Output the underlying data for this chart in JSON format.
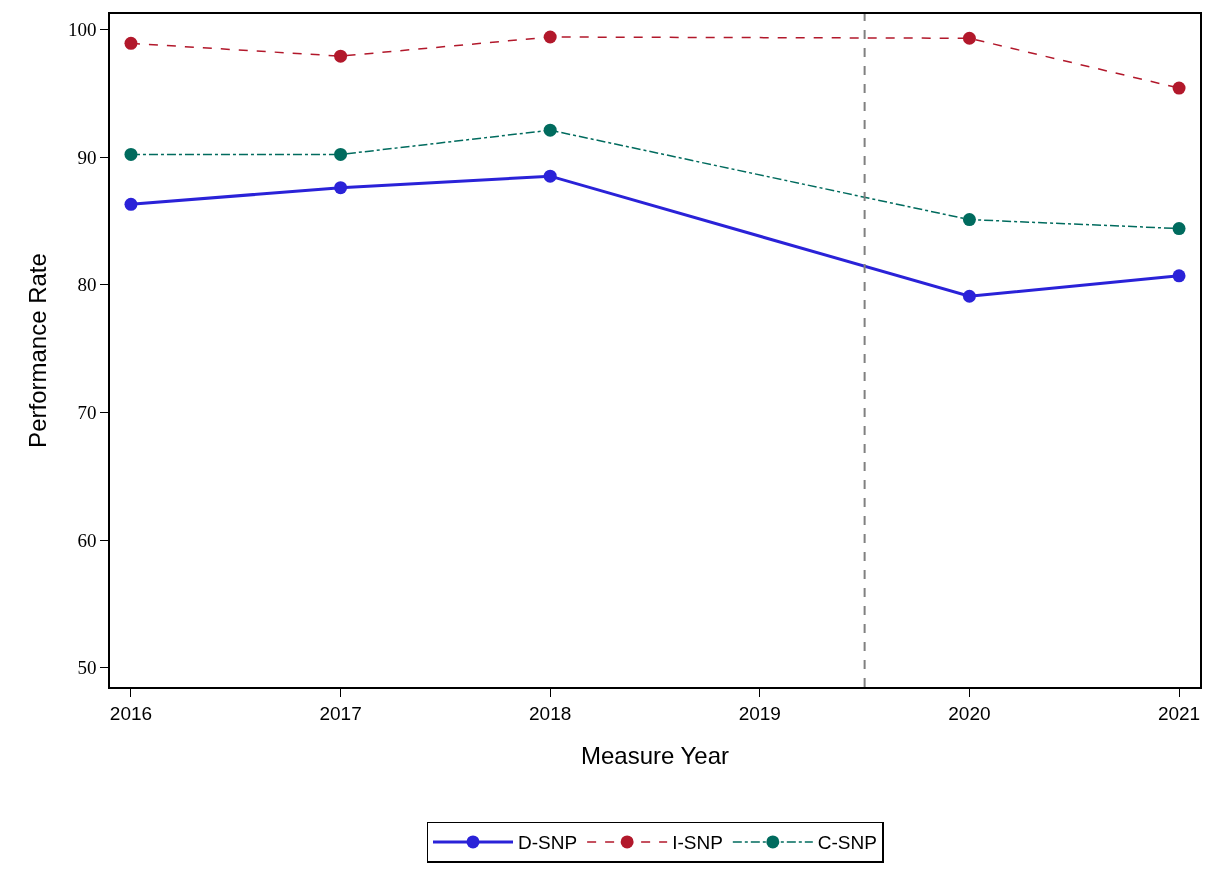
{
  "chart_data": {
    "type": "line",
    "xlabel": "Measure Year",
    "ylabel": "Performance Rate",
    "x": [
      2016,
      2017,
      2018,
      2020,
      2021
    ],
    "series": [
      {
        "name": "D-SNP",
        "color": "#2a22d8",
        "line_style": "solid",
        "values": [
          86.3,
          87.6,
          88.5,
          79.1,
          80.7
        ]
      },
      {
        "name": "I-SNP",
        "color": "#b2182b",
        "line_style": "dashed",
        "values": [
          98.9,
          97.9,
          99.4,
          99.3,
          95.4
        ]
      },
      {
        "name": "C-SNP",
        "color": "#006b5e",
        "line_style": "dashdot",
        "values": [
          90.2,
          90.2,
          92.1,
          85.1,
          84.4
        ]
      }
    ],
    "xlim": [
      2015.9,
      2021.1
    ],
    "xticks": [
      2016,
      2017,
      2018,
      2019,
      2020,
      2021
    ],
    "ylim": [
      48.5,
      101.2
    ],
    "yticks": [
      50,
      60,
      70,
      80,
      90,
      100
    ],
    "ref_lines": [
      {
        "axis": "x",
        "value": 2019.5,
        "color": "#808080",
        "line_style": "dashed"
      }
    ],
    "marker": "circle",
    "legend": "bottom"
  }
}
